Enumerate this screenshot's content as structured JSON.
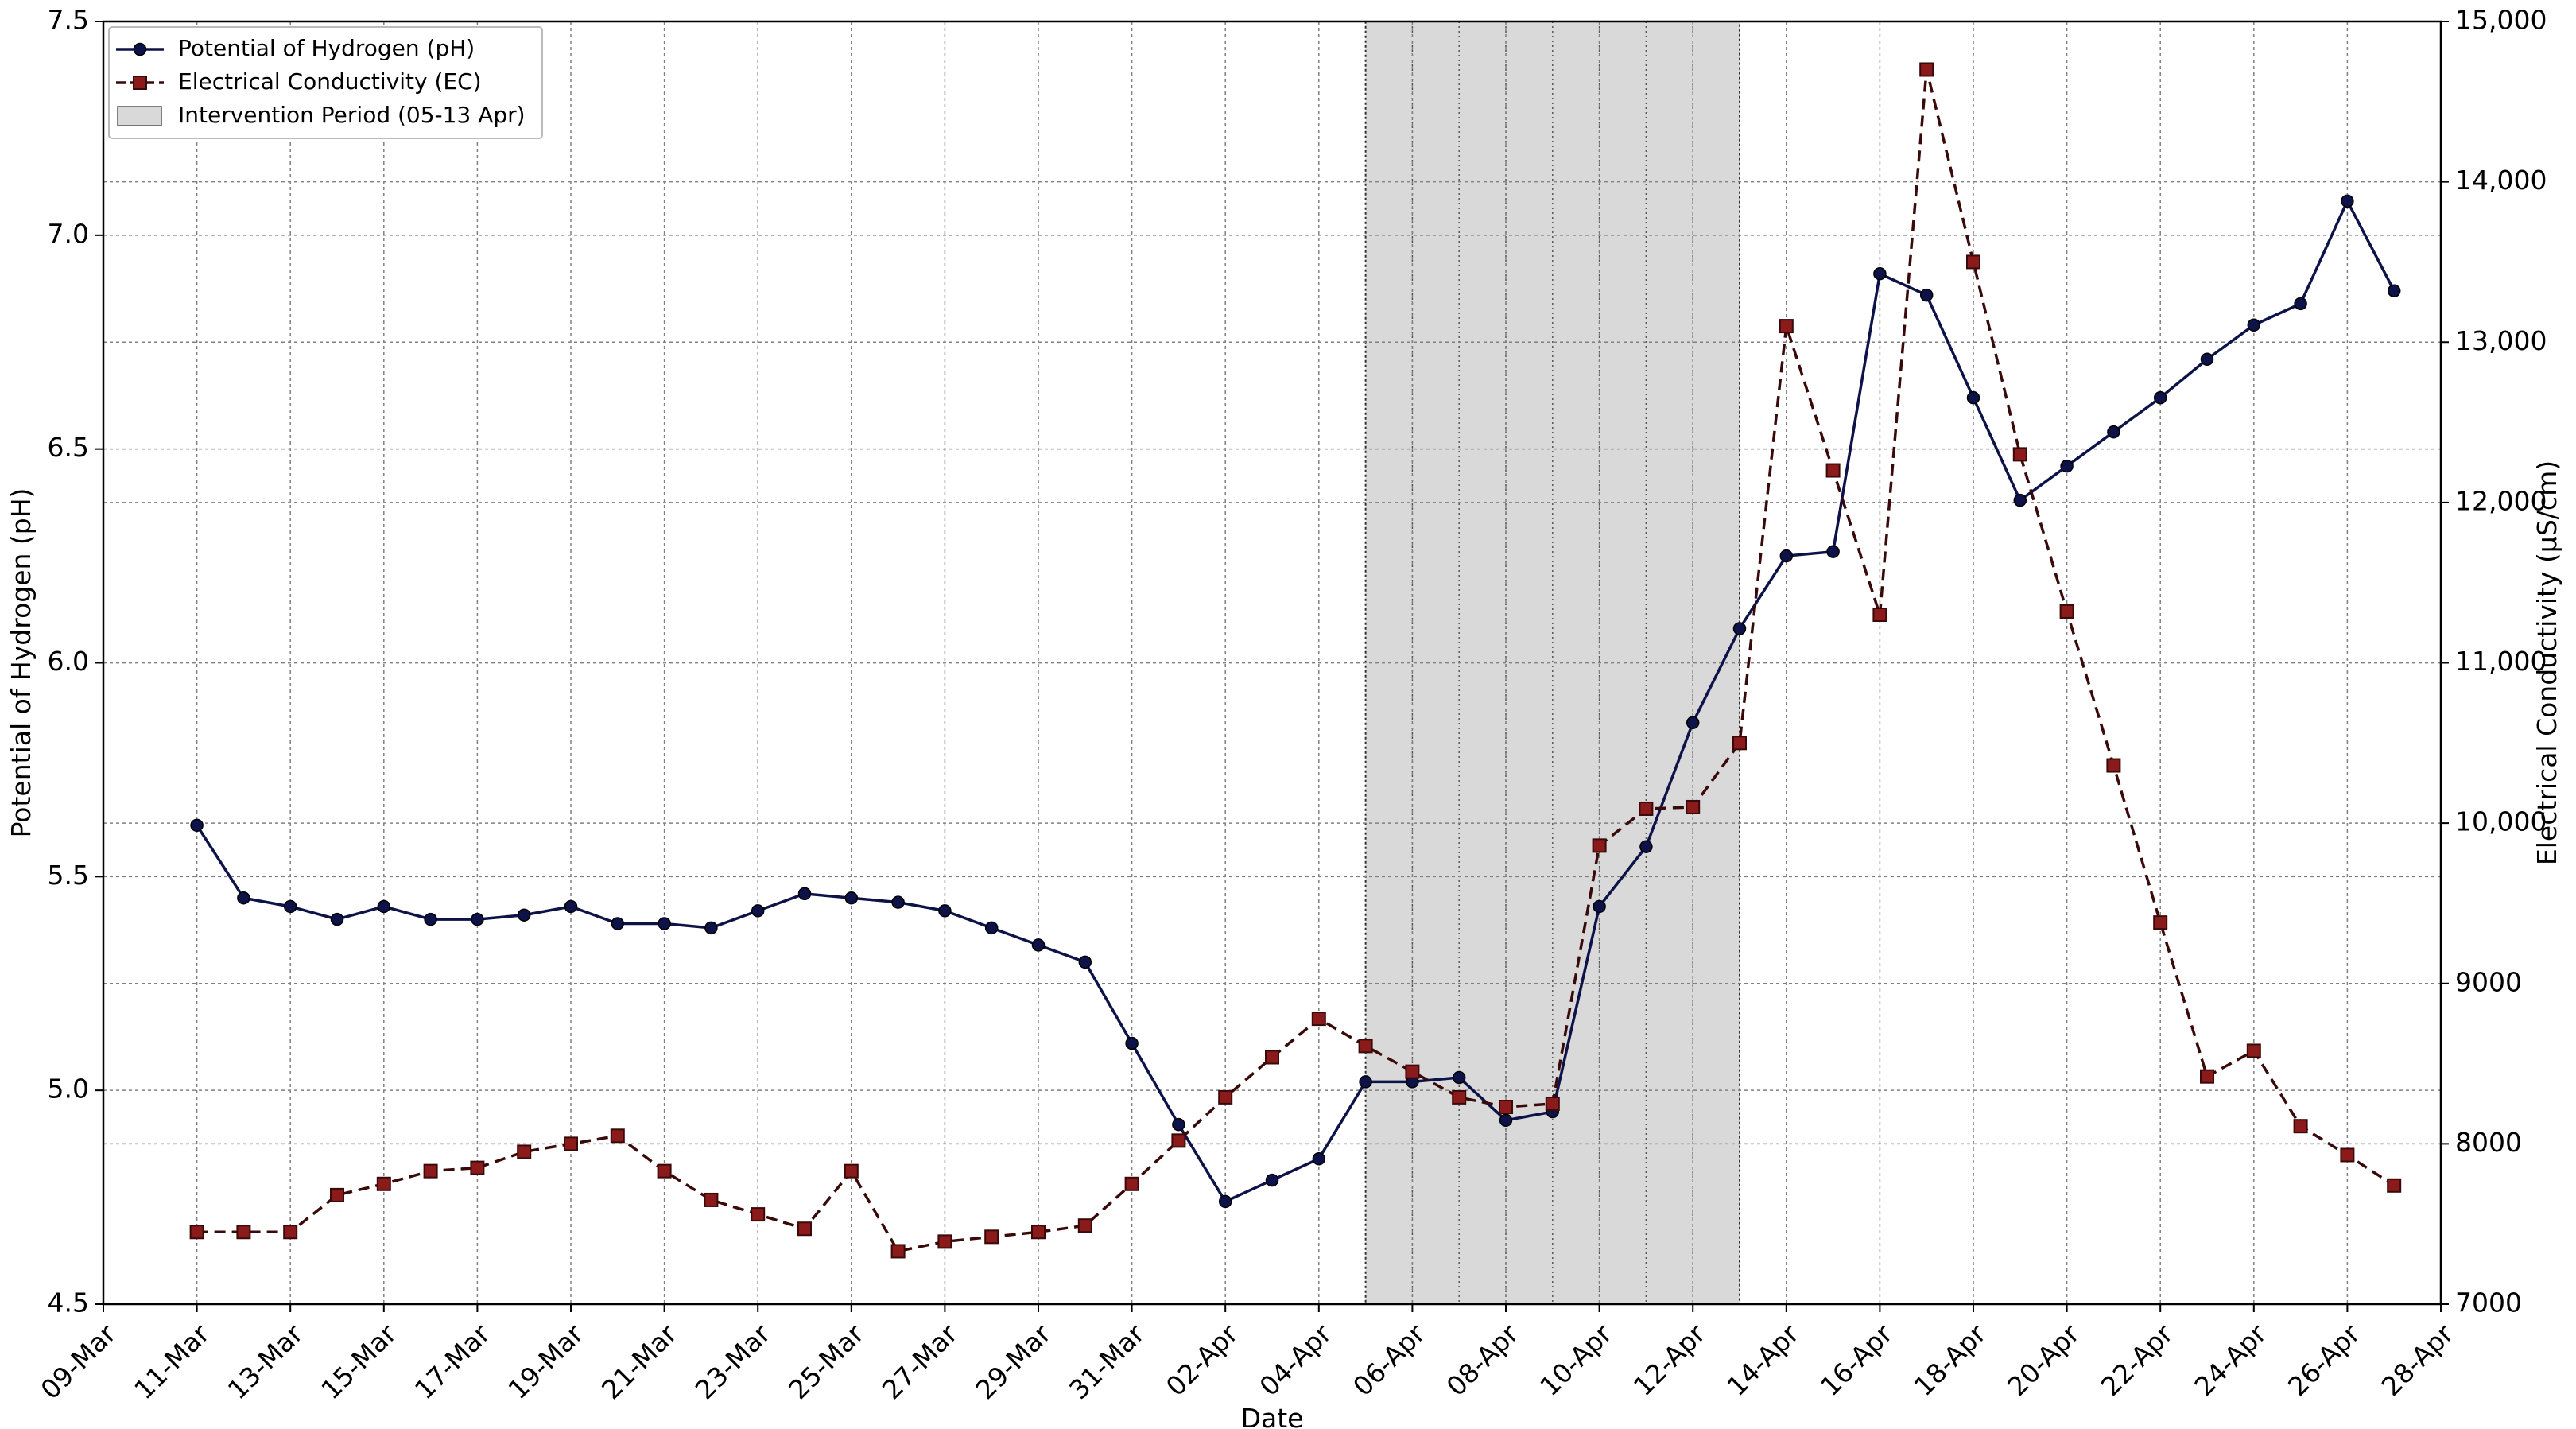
{
  "chart_data": {
    "type": "line",
    "xlabel": "Date",
    "ylabel_left": "Potential of Hydrogen (pH)",
    "ylabel_right": "Electrical Conductivity (µS/cm)",
    "x_ticks": [
      "09-Mar",
      "11-Mar",
      "13-Mar",
      "15-Mar",
      "17-Mar",
      "19-Mar",
      "21-Mar",
      "23-Mar",
      "25-Mar",
      "27-Mar",
      "29-Mar",
      "31-Mar",
      "02-Apr",
      "04-Apr",
      "06-Apr",
      "08-Apr",
      "10-Apr",
      "12-Apr",
      "14-Apr",
      "16-Apr",
      "18-Apr",
      "20-Apr",
      "22-Apr",
      "24-Apr",
      "26-Apr",
      "28-Apr"
    ],
    "xlim": [
      "2025-03-09",
      "2025-04-28"
    ],
    "ylim_left": [
      4.5,
      7.5
    ],
    "y_ticks_left": [
      "4.5",
      "5.0",
      "5.5",
      "6.0",
      "6.5",
      "7.0",
      "7.5"
    ],
    "ylim_right": [
      7000,
      15000
    ],
    "y_ticks_right": [
      "7000",
      "8000",
      "9000",
      "10,000",
      "11,000",
      "12,000",
      "13,000",
      "14,000",
      "15,000"
    ],
    "grid": true,
    "legend_position": "top-left",
    "dates": [
      "2025-03-11",
      "2025-03-12",
      "2025-03-13",
      "2025-03-14",
      "2025-03-15",
      "2025-03-16",
      "2025-03-17",
      "2025-03-18",
      "2025-03-19",
      "2025-03-20",
      "2025-03-21",
      "2025-03-22",
      "2025-03-23",
      "2025-03-24",
      "2025-03-25",
      "2025-03-26",
      "2025-03-27",
      "2025-03-28",
      "2025-03-29",
      "2025-03-30",
      "2025-03-31",
      "2025-04-01",
      "2025-04-02",
      "2025-04-03",
      "2025-04-04",
      "2025-04-05",
      "2025-04-06",
      "2025-04-07",
      "2025-04-08",
      "2025-04-09",
      "2025-04-10",
      "2025-04-11",
      "2025-04-12",
      "2025-04-13",
      "2025-04-14",
      "2025-04-15",
      "2025-04-16",
      "2025-04-17",
      "2025-04-18",
      "2025-04-19",
      "2025-04-20",
      "2025-04-21",
      "2025-04-22",
      "2025-04-23",
      "2025-04-24",
      "2025-04-25",
      "2025-04-26",
      "2025-04-27"
    ],
    "series": [
      {
        "name": "Potential of Hydrogen (pH)",
        "axis": "left",
        "color": "#0d1348",
        "linestyle": "solid",
        "marker": "circle",
        "values": [
          5.62,
          5.45,
          5.43,
          5.4,
          5.43,
          5.4,
          5.4,
          5.41,
          5.43,
          5.39,
          5.39,
          5.38,
          5.42,
          5.46,
          5.45,
          5.44,
          5.42,
          5.38,
          5.34,
          5.3,
          5.11,
          4.92,
          4.74,
          4.79,
          4.84,
          5.02,
          5.02,
          5.03,
          4.93,
          4.95,
          5.43,
          5.57,
          5.86,
          6.08,
          6.25,
          6.26,
          6.91,
          6.86,
          6.62,
          6.38,
          6.46,
          6.54,
          6.62,
          6.71,
          6.79,
          6.84,
          7.08,
          6.87
        ]
      },
      {
        "name": "Electrical Conductivity (EC)",
        "axis": "right",
        "color": "#8b1a1a",
        "linestyle": "dashed",
        "marker": "square",
        "values": [
          7450,
          7450,
          7450,
          7680,
          7750,
          7830,
          7850,
          7950,
          8000,
          8050,
          7830,
          7650,
          7560,
          7470,
          7830,
          7330,
          7390,
          7420,
          7450,
          7490,
          7750,
          8020,
          8290,
          8540,
          8780,
          8610,
          8450,
          8290,
          8230,
          8250,
          9860,
          10090,
          10100,
          10500,
          13100,
          12200,
          11300,
          14700,
          13500,
          12300,
          11320,
          10360,
          9380,
          8420,
          8580,
          8110,
          7930,
          7740
        ]
      },
      {
        "name": "Intervention Period (05-13 Apr)",
        "type": "span",
        "start": "2025-04-05",
        "end": "2025-04-13",
        "color": "#d9d9d9"
      }
    ]
  }
}
